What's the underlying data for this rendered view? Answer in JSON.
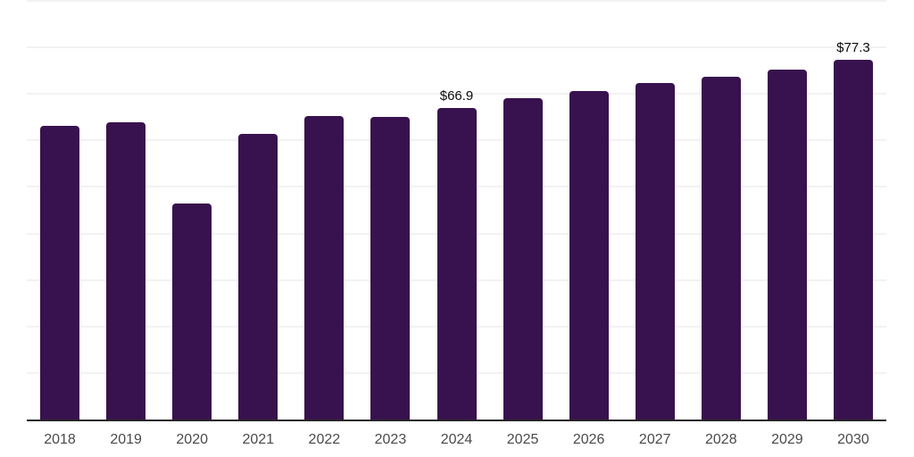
{
  "chart_data": {
    "type": "bar",
    "categories": [
      "2018",
      "2019",
      "2020",
      "2021",
      "2022",
      "2023",
      "2024",
      "2025",
      "2026",
      "2027",
      "2028",
      "2029",
      "2030"
    ],
    "values": [
      63.2,
      64.0,
      46.4,
      61.5,
      65.3,
      65.0,
      66.9,
      69.1,
      70.6,
      72.4,
      73.7,
      75.2,
      77.3
    ],
    "data_labels": [
      "",
      "",
      "",
      "",
      "",
      "",
      "$66.9",
      "",
      "",
      "",
      "",
      "",
      "$77.3"
    ],
    "title": "",
    "xlabel": "",
    "ylabel": "",
    "ylim": [
      0,
      90
    ],
    "grid_step": 10,
    "grid": "on",
    "legend": "none",
    "y_tick_labels_visible": false,
    "colors": {
      "bar": "#38124E",
      "grid": "#F2F2F2",
      "axis": "#262626",
      "tick_label": "#4A4A4A",
      "data_label": "#0A0A0A",
      "background": "#FFFFFF"
    }
  }
}
